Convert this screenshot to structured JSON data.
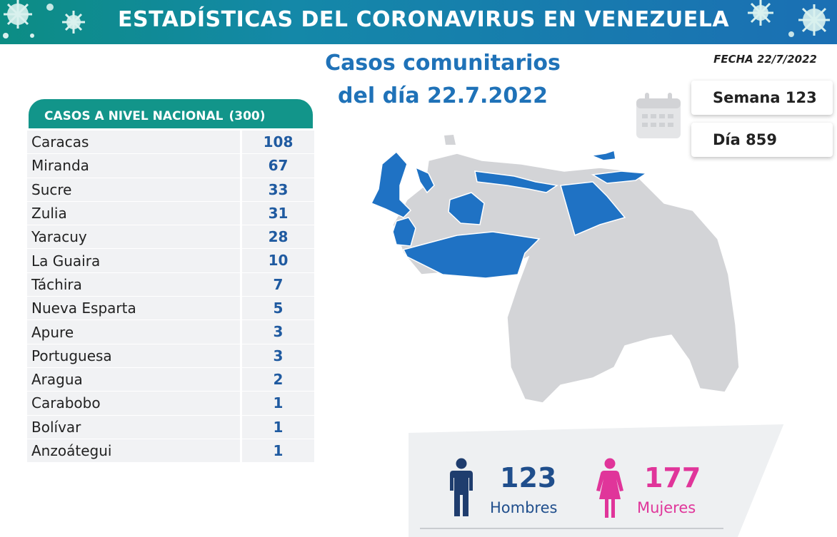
{
  "header": {
    "title": "ESTADÍSTICAS DEL CORONAVIRUS EN VENEZUELA"
  },
  "date": "FECHA 22/7/2022",
  "subtitle": {
    "line1": "Casos comunitarios",
    "line2": "del día 22.7.2022"
  },
  "table": {
    "header_label": "CASOS A NIVEL NACIONAL",
    "total": "(300)",
    "rows": [
      {
        "name": "Caracas",
        "value": "108"
      },
      {
        "name": "Miranda",
        "value": "67"
      },
      {
        "name": "Sucre",
        "value": "33"
      },
      {
        "name": "Zulia",
        "value": "31"
      },
      {
        "name": "Yaracuy",
        "value": "28"
      },
      {
        "name": "La Guaira",
        "value": "10"
      },
      {
        "name": "Táchira",
        "value": "7"
      },
      {
        "name": "Nueva Esparta",
        "value": "5"
      },
      {
        "name": "Apure",
        "value": "3"
      },
      {
        "name": "Portuguesa",
        "value": "3"
      },
      {
        "name": "Aragua",
        "value": "2"
      },
      {
        "name": "Carabobo",
        "value": "1"
      },
      {
        "name": "Bolívar",
        "value": "1"
      },
      {
        "name": "Anzoátegui",
        "value": "1"
      }
    ]
  },
  "badges": {
    "week": "Semana 123",
    "day": "Día 859"
  },
  "gender": {
    "men_count": "123",
    "men_label": "Hombres",
    "women_count": "177",
    "women_label": "Mujeres"
  },
  "colors": {
    "highlight": "#1f72c4",
    "map_gray": "#d3d4d7",
    "women": "#e0359a",
    "men": "#1f3d6e",
    "teal": "#12958a"
  },
  "icons": [
    "virus-icon",
    "calendar-icon",
    "man-icon",
    "woman-icon"
  ]
}
